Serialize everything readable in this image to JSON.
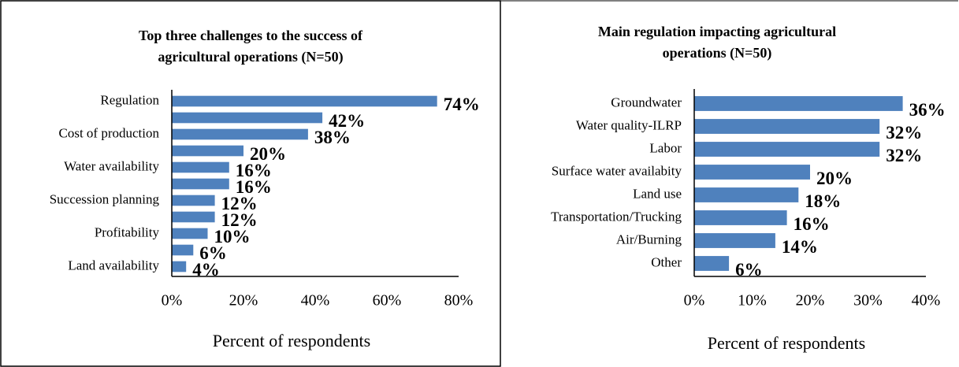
{
  "chart_data": [
    {
      "type": "bar",
      "orientation": "horizontal",
      "title": [
        "Top three challenges to the success of",
        "agricultural operations (N=50)"
      ],
      "x_label": "Percent of respondents",
      "categories": [
        "Regulation",
        null,
        "Cost of production",
        null,
        "Water availability",
        null,
        "Succession planning",
        null,
        "Profitability",
        null,
        "Land availability"
      ],
      "values": [
        74,
        42,
        38,
        20,
        16,
        16,
        12,
        12,
        10,
        6,
        4
      ],
      "value_labels": [
        "74%",
        "42%",
        "38%",
        "20%",
        "16%",
        "16%",
        "12%",
        "12%",
        "10%",
        "6%",
        "4%"
      ],
      "color": "#4f81bd",
      "xlim": [
        0,
        80
      ],
      "xticks": [
        {
          "value": 0,
          "label": "0%"
        },
        {
          "value": 20,
          "label": "20%"
        },
        {
          "value": 40,
          "label": "40%"
        },
        {
          "value": 60,
          "label": "60%"
        },
        {
          "value": 80,
          "label": "80%"
        }
      ]
    },
    {
      "type": "bar",
      "orientation": "horizontal",
      "title": [
        "Main regulation impacting agricultural",
        "operations (N=50)"
      ],
      "x_label": "Percent of respondents",
      "categories": [
        "Groundwater",
        "Water quality-ILRP",
        "Labor",
        "Surface water availabity",
        "Land use",
        "Transportation/Trucking",
        "Air/Burning",
        "Other"
      ],
      "values": [
        36,
        32,
        32,
        20,
        18,
        16,
        14,
        6
      ],
      "value_labels": [
        "36%",
        "32%",
        "32%",
        "20%",
        "18%",
        "16%",
        "14%",
        "6%"
      ],
      "color": "#4f81bd",
      "xlim": [
        0,
        40
      ],
      "xticks": [
        {
          "value": 0,
          "label": "0%"
        },
        {
          "value": 10,
          "label": "10%"
        },
        {
          "value": 20,
          "label": "20%"
        },
        {
          "value": 30,
          "label": "30%"
        },
        {
          "value": 40,
          "label": "40%"
        }
      ]
    }
  ]
}
